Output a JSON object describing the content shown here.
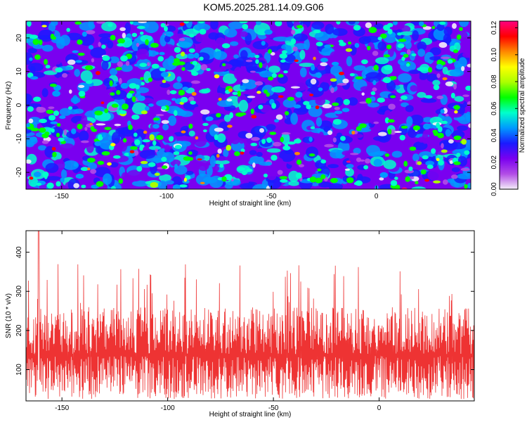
{
  "title": "KOM5.2025.281.14.09.G06",
  "chart_data": [
    {
      "type": "heatmap",
      "title": "KOM5.2025.281.14.09.G06",
      "xlabel": "Height of straight line (km)",
      "ylabel": "Frequency (Hz)",
      "xlim": [
        -167,
        45
      ],
      "ylim": [
        -25,
        25
      ],
      "xticks": [
        -150,
        -100,
        -50,
        0
      ],
      "xtick_labels": [
        "-150",
        "-100",
        "-50",
        "0"
      ],
      "yticks": [
        -20,
        -10,
        0,
        10,
        20
      ],
      "ytick_labels": [
        "-20",
        "-10",
        "0",
        "10",
        "20"
      ],
      "colorbar": {
        "label": "Normalized spectral amplitude",
        "range": [
          0.0,
          0.125
        ],
        "ticks": [
          0.0,
          0.02,
          0.04,
          0.06,
          0.08,
          0.1,
          0.12
        ],
        "tick_labels": [
          "0.00",
          "0.02",
          "0.04",
          "0.06",
          "0.08",
          "0.10",
          "0.12"
        ],
        "colors": [
          "#f4eef8",
          "#b24de6",
          "#7a00f0",
          "#1a1aff",
          "#0099ff",
          "#00ffcc",
          "#00ff00",
          "#aaff00",
          "#ffff00",
          "#ff8800",
          "#ff0000",
          "#ff0080"
        ]
      },
      "typical_amplitude": 0.03,
      "peak_amplitude": 0.12
    },
    {
      "type": "line",
      "xlabel": "Height of straight line (km)",
      "ylabel": "SNR (10 * v/v)",
      "xlim": [
        -167,
        45
      ],
      "ylim": [
        20,
        455
      ],
      "xticks": [
        -150,
        -100,
        -50,
        0
      ],
      "xtick_labels": [
        "-150",
        "-100",
        "-50",
        "0"
      ],
      "yticks": [
        100,
        200,
        300,
        400
      ],
      "ytick_labels": [
        "100",
        "200",
        "300",
        "400"
      ],
      "series": [
        {
          "name": "SNR",
          "color": "#ee3333",
          "baseline": 120,
          "typical_max": 260,
          "peak_x": -161,
          "peak_value": 455
        }
      ]
    }
  ]
}
